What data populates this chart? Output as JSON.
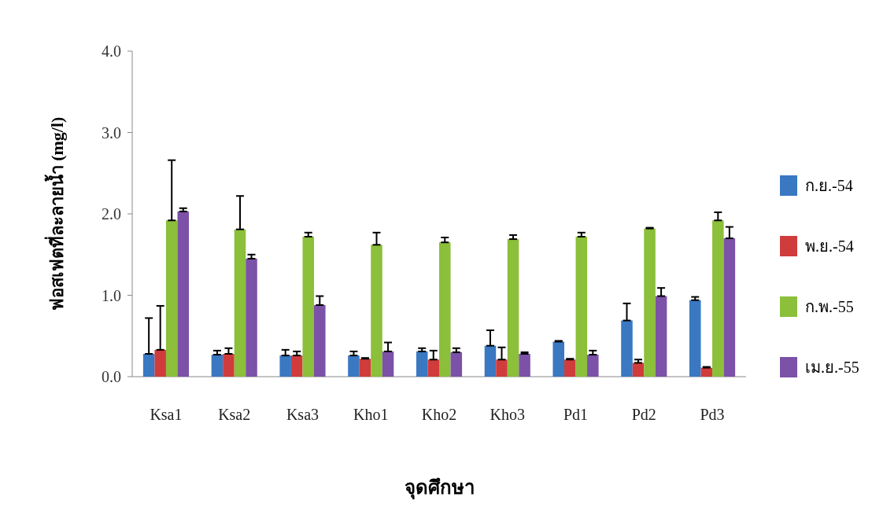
{
  "chart_data": {
    "type": "bar",
    "xlabel": "จุดศึกษา",
    "ylabel": "ฟอสเฟตที่ละลายน้ำ (mg/l)",
    "categories": [
      "Ksa1",
      "Ksa2",
      "Ksa3",
      "Kho1",
      "Kho2",
      "Kho3",
      "Pd1",
      "Pd2",
      "Pd3"
    ],
    "series": [
      {
        "name": "ก.ย.-54",
        "color": "#3a78c2",
        "values": [
          0.28,
          0.27,
          0.26,
          0.26,
          0.31,
          0.38,
          0.43,
          0.69,
          0.94
        ],
        "errors": [
          [
            0.28,
            0.72
          ],
          [
            0.27,
            0.32
          ],
          [
            0.26,
            0.33
          ],
          [
            0.26,
            0.31
          ],
          [
            0.31,
            0.35
          ],
          [
            0.38,
            0.57
          ],
          [
            0.43,
            0.44
          ],
          [
            0.69,
            0.9
          ],
          [
            0.94,
            0.98
          ]
        ]
      },
      {
        "name": "พ.ย.-54",
        "color": "#d03c3c",
        "values": [
          0.33,
          0.28,
          0.26,
          0.22,
          0.21,
          0.21,
          0.21,
          0.17,
          0.11
        ],
        "errors": [
          [
            0.33,
            0.87
          ],
          [
            0.28,
            0.35
          ],
          [
            0.26,
            0.31
          ],
          [
            0.22,
            0.23
          ],
          [
            0.21,
            0.32
          ],
          [
            0.21,
            0.36
          ],
          [
            0.21,
            0.22
          ],
          [
            0.17,
            0.21
          ],
          [
            0.11,
            0.12
          ]
        ]
      },
      {
        "name": "ก.พ.-55",
        "color": "#8cbf3a",
        "values": [
          1.92,
          1.81,
          1.72,
          1.62,
          1.65,
          1.69,
          1.72,
          1.82,
          1.92
        ],
        "errors": [
          [
            1.92,
            2.66
          ],
          [
            1.81,
            2.22
          ],
          [
            1.72,
            1.77
          ],
          [
            1.62,
            1.77
          ],
          [
            1.65,
            1.71
          ],
          [
            1.69,
            1.74
          ],
          [
            1.72,
            1.77
          ],
          [
            1.82,
            1.83
          ],
          [
            1.92,
            2.02
          ]
        ]
      },
      {
        "name": "เม.ย.-55",
        "color": "#7b52a8",
        "values": [
          2.03,
          1.45,
          0.88,
          0.31,
          0.3,
          0.28,
          0.27,
          0.99,
          1.7
        ],
        "errors": [
          [
            2.03,
            2.07
          ],
          [
            1.45,
            1.5
          ],
          [
            0.88,
            0.99
          ],
          [
            0.31,
            0.42
          ],
          [
            0.3,
            0.35
          ],
          [
            0.28,
            0.3
          ],
          [
            0.27,
            0.32
          ],
          [
            0.99,
            1.09
          ],
          [
            1.7,
            1.84
          ]
        ]
      }
    ],
    "ylim": [
      0,
      4
    ],
    "yticks": [
      {
        "value": 0,
        "label": "0.0"
      },
      {
        "value": 1,
        "label": "1.0"
      },
      {
        "value": 2,
        "label": "2.0"
      },
      {
        "value": 3,
        "label": "3.0"
      },
      {
        "value": 4,
        "label": "4.0"
      }
    ],
    "grid": false,
    "legend": "right"
  }
}
